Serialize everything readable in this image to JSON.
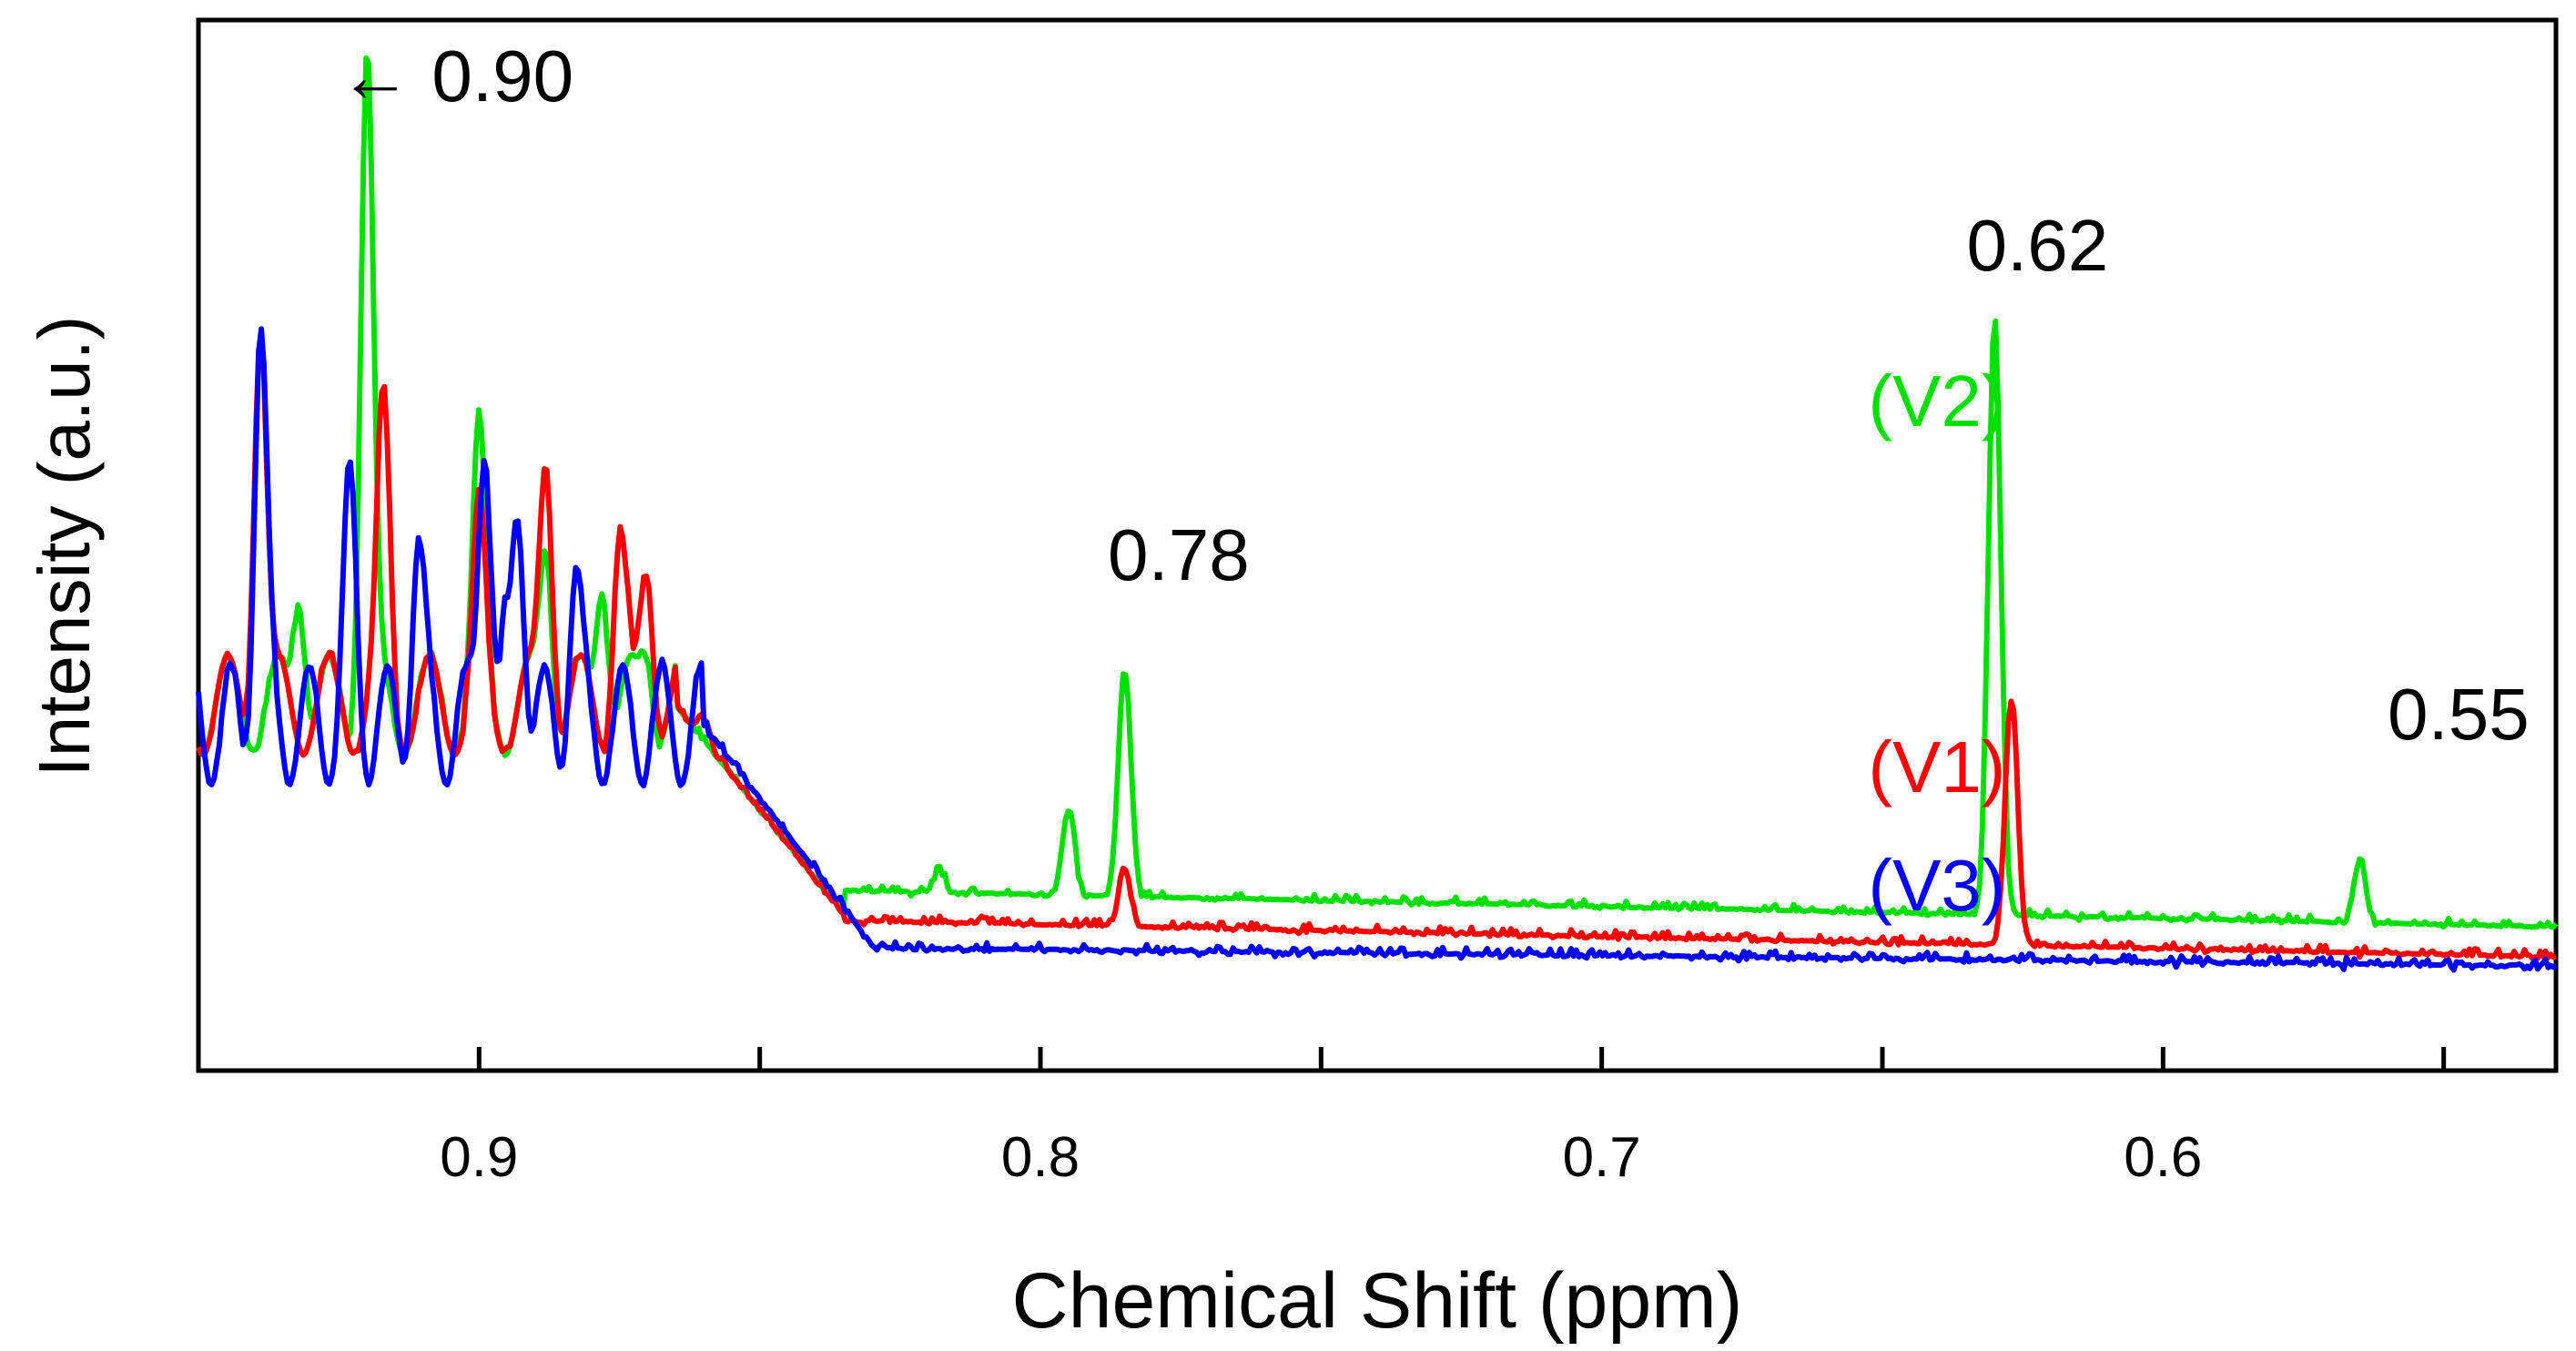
{
  "chart_data": {
    "type": "line",
    "xlabel": "Chemical Shift (ppm)",
    "ylabel": "Intensity (a.u.)",
    "x_reversed": true,
    "xlim": [
      0.95,
      0.53
    ],
    "ylim": [
      0,
      100
    ],
    "x_ticks": [
      {
        "value": 0.9,
        "label": "0.9"
      },
      {
        "value": 0.8,
        "label": "0.8"
      },
      {
        "value": 0.7,
        "label": "0.7"
      },
      {
        "value": 0.6,
        "label": "0.6"
      }
    ],
    "grid": false,
    "legend": [
      {
        "label": "(V2)",
        "color": "#00e000"
      },
      {
        "label": "(V1)",
        "color": "#ff0000"
      },
      {
        "label": "(V3)",
        "color": "#0000ff"
      }
    ],
    "annotations": [
      {
        "text": "← 0.90",
        "x": 0.925,
        "y": 95
      },
      {
        "text": "0.78",
        "x": 0.788,
        "y": 47
      },
      {
        "text": "0.62",
        "x": 0.635,
        "y": 78
      },
      {
        "text": "0.55",
        "x": 0.56,
        "y": 31
      }
    ],
    "series": [
      {
        "color": "#00e000",
        "peaks": [
          {
            "x": 0.92,
            "h": 100
          },
          {
            "x": 0.932,
            "h": 44
          },
          {
            "x": 0.9,
            "h": 64
          },
          {
            "x": 0.888,
            "h": 50
          },
          {
            "x": 0.878,
            "h": 45
          },
          {
            "x": 0.87,
            "h": 39
          },
          {
            "x": 0.795,
            "h": 24
          },
          {
            "x": 0.785,
            "h": 38
          },
          {
            "x": 0.818,
            "h": 18
          },
          {
            "x": 0.77,
            "h": 14
          },
          {
            "x": 0.63,
            "h": 73
          },
          {
            "x": 0.565,
            "h": 19
          },
          {
            "x": 0.71,
            "h": 10
          },
          {
            "x": 0.705,
            "h": 9
          }
        ]
      },
      {
        "color": "#ff0000",
        "peaks": [
          {
            "x": 0.939,
            "h": 72
          },
          {
            "x": 0.917,
            "h": 67
          },
          {
            "x": 0.9,
            "h": 56
          },
          {
            "x": 0.888,
            "h": 58
          },
          {
            "x": 0.875,
            "h": 52
          },
          {
            "x": 0.87,
            "h": 47
          },
          {
            "x": 0.86,
            "h": 33
          },
          {
            "x": 0.785,
            "h": 18
          },
          {
            "x": 0.81,
            "h": 13
          },
          {
            "x": 0.627,
            "h": 35
          },
          {
            "x": 0.562,
            "h": 9
          },
          {
            "x": 0.712,
            "h": 7
          }
        ]
      },
      {
        "color": "#0000ff",
        "peaks": [
          {
            "x": 0.939,
            "h": 72
          },
          {
            "x": 0.923,
            "h": 59
          },
          {
            "x": 0.911,
            "h": 50
          },
          {
            "x": 0.899,
            "h": 59
          },
          {
            "x": 0.893,
            "h": 53
          },
          {
            "x": 0.883,
            "h": 47
          },
          {
            "x": 0.895,
            "h": 45
          }
        ]
      }
    ]
  }
}
